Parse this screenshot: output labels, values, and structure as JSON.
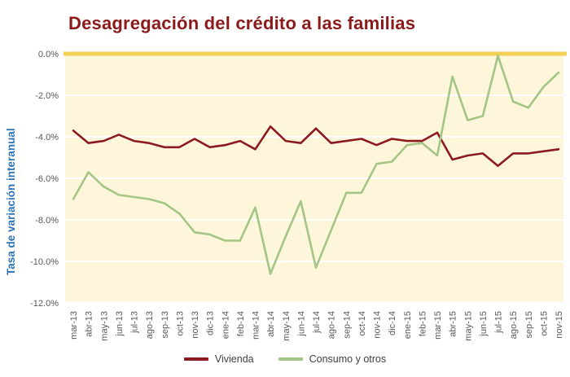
{
  "title": "Desagregación del crédito a las familias",
  "y_axis_title": "Tasa de variación interanual",
  "colors": {
    "title": "#8B1A1A",
    "y_axis_title": "#2E74B5",
    "tick_text": "#595959",
    "plot_bg": "#FDF6DB",
    "grid": "#FFFFFF",
    "zero_line": "#F2CF55"
  },
  "legend": {
    "items": [
      {
        "label": "Vivienda",
        "color": "#8B1B21"
      },
      {
        "label": "Consumo y otros",
        "color": "#A3C585"
      }
    ]
  },
  "chart_data": {
    "type": "line",
    "title": "Desagregación del crédito a las familias",
    "xlabel": "",
    "ylabel": "Tasa de variación interanual",
    "ylim": [
      -12,
      0
    ],
    "ytick_step": 2,
    "ytick_labels": [
      "0.0%",
      "-2.0%",
      "-4.0%",
      "-6.0%",
      "-8.0%",
      "-10.0%",
      "-12.0%"
    ],
    "grid": true,
    "legend_position": "bottom",
    "x": [
      "mar-13",
      "abr-13",
      "may-13",
      "jun-13",
      "jul-13",
      "ago-13",
      "sep-13",
      "oct-13",
      "nov-13",
      "dic-13",
      "ene-14",
      "feb-14",
      "mar-14",
      "abr-14",
      "may-14",
      "jun-14",
      "jul-14",
      "ago-14",
      "sep-14",
      "oct-14",
      "nov-14",
      "dic-14",
      "ene-15",
      "feb-15",
      "mar-15",
      "abr-15",
      "may-15",
      "jun-15",
      "jul-15",
      "ago-15",
      "sep-15",
      "oct-15",
      "nov-15"
    ],
    "series": [
      {
        "name": "Vivienda",
        "color": "#8B1B21",
        "values": [
          -3.7,
          -4.3,
          -4.2,
          -3.9,
          -4.2,
          -4.3,
          -4.5,
          -4.5,
          -4.1,
          -4.5,
          -4.4,
          -4.2,
          -4.6,
          -3.5,
          -4.2,
          -4.3,
          -3.6,
          -4.3,
          -4.2,
          -4.1,
          -4.4,
          -4.1,
          -4.2,
          -4.2,
          -3.8,
          -5.1,
          -4.9,
          -4.8,
          -5.4,
          -4.8,
          -4.8,
          -4.7,
          -4.6
        ]
      },
      {
        "name": "Consumo y otros",
        "color": "#A3C585",
        "values": [
          -7.0,
          -5.7,
          -6.4,
          -6.8,
          -6.9,
          -7.0,
          -7.2,
          -7.7,
          -8.6,
          -8.7,
          -9.0,
          -9.0,
          -7.4,
          -10.6,
          -8.8,
          -7.1,
          -10.3,
          -8.5,
          -6.7,
          -6.7,
          -5.3,
          -5.2,
          -4.4,
          -4.3,
          -4.9,
          -1.1,
          -3.2,
          -3.0,
          -0.1,
          -2.3,
          -2.6,
          -1.6,
          -0.9
        ]
      }
    ]
  }
}
